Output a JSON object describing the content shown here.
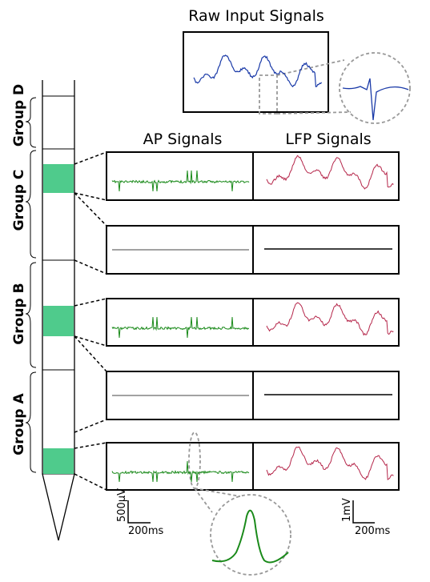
{
  "raw_input": {
    "title": "Raw Input Signals"
  },
  "columns": [
    "AP Signals",
    "LFP Signals"
  ],
  "groups": [
    "Group D",
    "Group C",
    "Group B",
    "Group A"
  ],
  "scale_bars": [
    {
      "vertical": "500µV",
      "horizontal": "200ms"
    },
    {
      "vertical": "1mV",
      "horizontal": "200ms"
    }
  ]
}
